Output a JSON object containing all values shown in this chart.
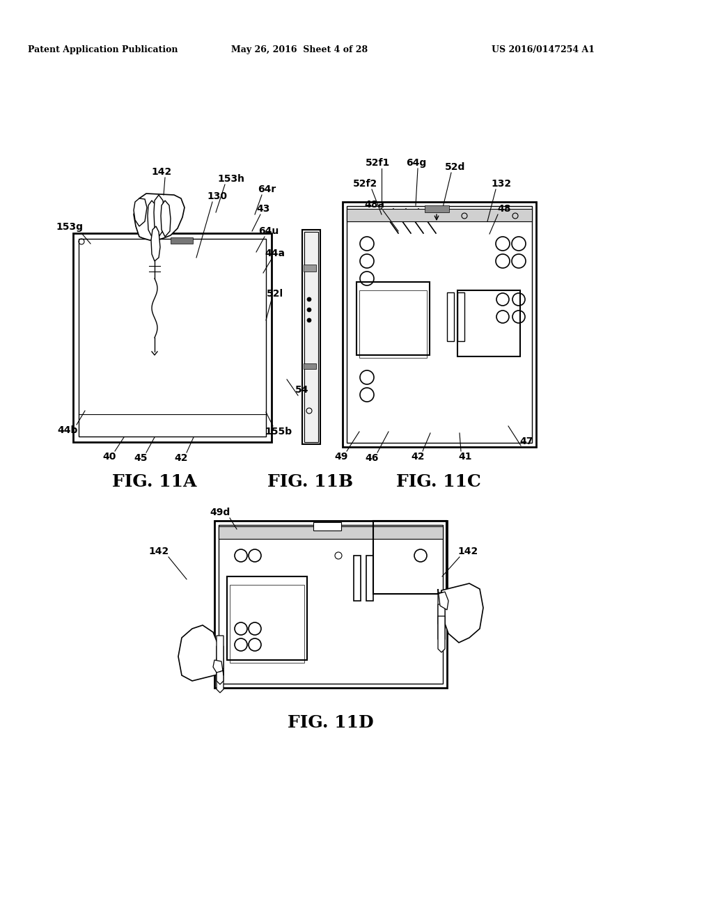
{
  "bg_color": "#ffffff",
  "header_left": "Patent Application Publication",
  "header_mid": "May 26, 2016  Sheet 4 of 28",
  "header_right": "US 2016/0147254 A1",
  "annotation_fontsize": 10,
  "fig_label_fontsize": 18,
  "header_fontsize": 9
}
